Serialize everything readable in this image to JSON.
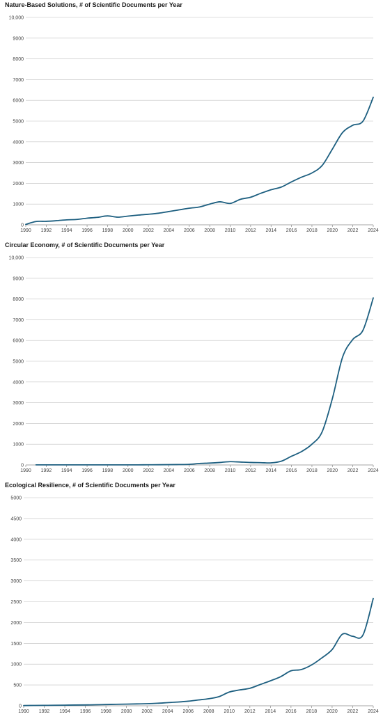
{
  "chart_data": [
    {
      "type": "line",
      "title": "Nature-Based Solutions, # of Scientific Documents per Year",
      "xlabel": "",
      "ylabel": "",
      "xlim": [
        1990,
        2024
      ],
      "ylim": [
        0,
        10000
      ],
      "yticks": [
        "0",
        "1000",
        "2000",
        "3000",
        "4000",
        "5000",
        "6000",
        "7000",
        "8000",
        "9000",
        "10,000"
      ],
      "xticks": [
        "1990",
        "1992",
        "1994",
        "1996",
        "1998",
        "2000",
        "2002",
        "2004",
        "2006",
        "2008",
        "2010",
        "2012",
        "2014",
        "2016",
        "2018",
        "2020",
        "2022",
        "2024"
      ],
      "grid": true,
      "color": "#1d5f80",
      "x": [
        1990,
        1991,
        1992,
        1993,
        1994,
        1995,
        1996,
        1997,
        1998,
        1999,
        2000,
        2001,
        2002,
        2003,
        2004,
        2005,
        2006,
        2007,
        2008,
        2009,
        2010,
        2011,
        2012,
        2013,
        2014,
        2015,
        2016,
        2017,
        2018,
        2019,
        2020,
        2021,
        2022,
        2023,
        2024
      ],
      "values": [
        20,
        160,
        170,
        200,
        240,
        260,
        320,
        360,
        430,
        370,
        420,
        470,
        510,
        560,
        640,
        720,
        800,
        860,
        1000,
        1110,
        1030,
        1230,
        1330,
        1520,
        1690,
        1820,
        2070,
        2300,
        2500,
        2860,
        3650,
        4450,
        4800,
        5000,
        6150
      ]
    },
    {
      "type": "line",
      "title": "Circular Economy, # of Scientific Documents per Year",
      "xlabel": "",
      "ylabel": "",
      "xlim": [
        1990,
        2024
      ],
      "ylim": [
        0,
        10000
      ],
      "yticks": [
        "0",
        "1000",
        "2000",
        "3000",
        "4000",
        "5000",
        "6000",
        "7000",
        "8000",
        "9000",
        "10,000"
      ],
      "xticks": [
        "1990",
        "1992",
        "1994",
        "1996",
        "1998",
        "2000",
        "2002",
        "2004",
        "2006",
        "2008",
        "2010",
        "2012",
        "2014",
        "2016",
        "2018",
        "2020",
        "2022",
        "2024"
      ],
      "grid": true,
      "color": "#1d5f80",
      "x": [
        1991,
        1992,
        1993,
        1994,
        1995,
        1996,
        1997,
        1998,
        1999,
        2000,
        2001,
        2002,
        2003,
        2004,
        2005,
        2006,
        2007,
        2008,
        2009,
        2010,
        2011,
        2012,
        2013,
        2014,
        2015,
        2016,
        2017,
        2018,
        2019,
        2020,
        2021,
        2022,
        2023,
        2024
      ],
      "values": [
        5,
        5,
        5,
        5,
        5,
        5,
        5,
        5,
        5,
        5,
        5,
        8,
        10,
        15,
        20,
        30,
        70,
        90,
        120,
        160,
        140,
        120,
        110,
        100,
        180,
        420,
        650,
        1000,
        1600,
        3200,
        5200,
        6050,
        6500,
        8050
      ]
    },
    {
      "type": "line",
      "title": "Ecological Resilience, # of Scientific Documents per Year",
      "xlabel": "",
      "ylabel": "",
      "xlim": [
        1990,
        2024
      ],
      "ylim": [
        0,
        5000
      ],
      "yticks": [
        "0",
        "500",
        "1000",
        "1500",
        "2000",
        "2500",
        "3000",
        "3500",
        "4000",
        "4500",
        "5000"
      ],
      "xticks": [
        "1990",
        "1992",
        "1994",
        "1996",
        "1998",
        "2000",
        "2002",
        "2004",
        "2006",
        "2008",
        "2010",
        "2012",
        "2014",
        "2016",
        "2018",
        "2020",
        "2022",
        "2024"
      ],
      "grid": true,
      "color": "#1d5f80",
      "x": [
        1990,
        1991,
        1992,
        1993,
        1994,
        1995,
        1996,
        1997,
        1998,
        1999,
        2000,
        2001,
        2002,
        2003,
        2004,
        2005,
        2006,
        2007,
        2008,
        2009,
        2010,
        2011,
        2012,
        2013,
        2014,
        2015,
        2016,
        2017,
        2018,
        2019,
        2020,
        2021,
        2022,
        2023,
        2024
      ],
      "values": [
        5,
        8,
        10,
        12,
        15,
        18,
        20,
        25,
        30,
        35,
        40,
        45,
        50,
        60,
        75,
        90,
        110,
        140,
        170,
        220,
        330,
        380,
        420,
        510,
        600,
        700,
        840,
        870,
        980,
        1150,
        1350,
        1720,
        1670,
        1700,
        2580
      ]
    }
  ]
}
